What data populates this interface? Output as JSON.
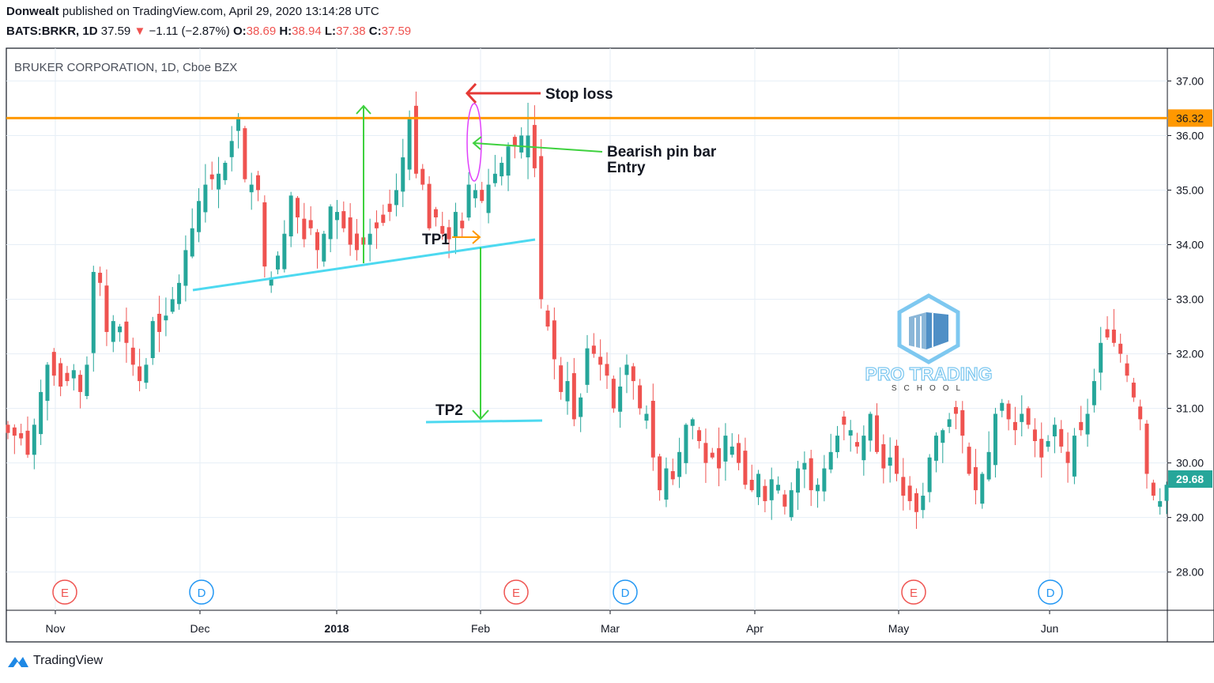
{
  "header": {
    "author": "Donwealt",
    "published": "published on TradingView.com, April 29, 2020 13:14:28 UTC",
    "symbol": "BATS:BRKR, 1D",
    "last": "37.59",
    "arrow": "▼",
    "change": "−1.11 (−2.87%)",
    "o_label": "O:",
    "o_val": "38.69",
    "h_label": "H:",
    "h_val": "38.94",
    "l_label": "L:",
    "l_val": "37.38",
    "c_label": "C:",
    "c_val": "37.59"
  },
  "footer": {
    "brand": "TradingView"
  },
  "colors": {
    "up": "#26a69a",
    "down": "#ef5350",
    "resistance": "#ff9800",
    "trendline": "#4dd9f0",
    "stop": "#e53935",
    "entry": "#3ed13e",
    "tp": "#ff9800",
    "grid": "#e6eef6",
    "price_tag": "#26a69a"
  },
  "chart_data": {
    "type": "candlestick",
    "title": "BRUKER CORPORATION, 1D, Cboe BZX",
    "x_ticks": [
      "Nov",
      "Dec",
      "2018",
      "Feb",
      "Mar",
      "Apr",
      "May",
      "Jun"
    ],
    "y_ticks": [
      "37.00",
      "36.00",
      "35.00",
      "34.00",
      "33.00",
      "32.00",
      "31.00",
      "30.00",
      "29.00",
      "28.00"
    ],
    "ylim": [
      27.3,
      37.6
    ],
    "resistance_level": "36.32",
    "last_price": "29.68",
    "annotations": {
      "stop_loss": "Stop loss",
      "entry_line1": "Bearish pin bar",
      "entry_line2": "Entry",
      "tp1": "TP1",
      "tp2": "TP2"
    },
    "events": [
      {
        "label": "E",
        "type": "earnings",
        "x": 0.05
      },
      {
        "label": "D",
        "type": "dividend",
        "x": 0.17
      },
      {
        "label": "E",
        "type": "earnings",
        "x": 0.44
      },
      {
        "label": "D",
        "type": "dividend",
        "x": 0.53
      },
      {
        "label": "E",
        "type": "earnings",
        "x": 0.78
      },
      {
        "label": "D",
        "type": "dividend",
        "x": 0.9
      }
    ],
    "watermark_line1": "PRO TRADING",
    "watermark_line2": "SCHOOL",
    "closes": [
      30.55,
      30.5,
      30.45,
      30.15,
      30.7,
      31.3,
      31.8,
      31.6,
      31.4,
      31.5,
      31.7,
      31.3,
      31.8,
      33.5,
      33.3,
      32.4,
      32.6,
      32.5,
      32.2,
      31.8,
      31.5,
      31.8,
      32.6,
      32.4,
      32.7,
      33.0,
      33.3,
      33.9,
      34.3,
      34.8,
      35.1,
      35.2,
      35.3,
      35.5,
      35.9,
      36.3,
      35.2,
      35.1,
      35.0,
      33.6,
      33.4,
      33.8,
      34.2,
      34.9,
      34.5,
      34.1,
      34.3,
      33.9,
      34.2,
      34.7,
      34.6,
      34.3,
      34.0,
      33.9,
      34.0,
      34.2,
      34.3,
      34.4,
      34.6,
      35.0,
      35.6,
      36.3,
      35.3,
      35.1,
      34.3,
      34.5,
      34.2,
      34.1,
      34.6,
      34.3,
      35.1,
      35.0,
      34.8,
      35.1,
      35.3,
      35.5,
      35.8,
      35.8,
      36.0,
      36.1,
      35.4,
      33.0,
      32.5,
      31.9,
      31.3,
      31.5,
      30.8,
      31.2,
      32.1,
      32.0,
      31.8,
      31.6,
      31.0,
      31.4,
      31.8,
      31.5,
      31.0,
      30.9,
      30.1,
      29.5,
      29.9,
      29.7,
      30.2,
      30.7,
      30.8,
      30.4,
      30.0,
      30.1,
      29.9,
      30.5,
      30.3,
      30.0,
      29.6,
      29.5,
      29.8,
      29.3,
      29.7,
      29.6,
      29.2,
      29.5,
      29.9,
      30.0,
      29.5,
      29.6,
      29.9,
      30.2,
      30.5,
      30.7,
      30.6,
      30.3,
      30.5,
      30.9,
      30.2,
      29.9,
      30.1,
      29.8,
      29.4,
      29.3,
      29.1,
      29.4,
      30.1,
      30.5,
      30.6,
      30.8,
      30.9,
      30.5,
      29.8,
      29.5,
      29.8,
      30.2,
      30.9,
      31.1,
      30.8,
      30.6,
      30.9,
      30.7,
      30.4,
      30.1,
      30.4,
      30.7,
      30.3,
      30.0,
      30.5,
      30.6,
      30.9,
      31.5,
      32.2,
      32.3,
      32.2,
      32.0,
      31.6,
      31.2,
      30.8,
      29.8,
      29.4,
      29.3,
      29.6
    ]
  }
}
